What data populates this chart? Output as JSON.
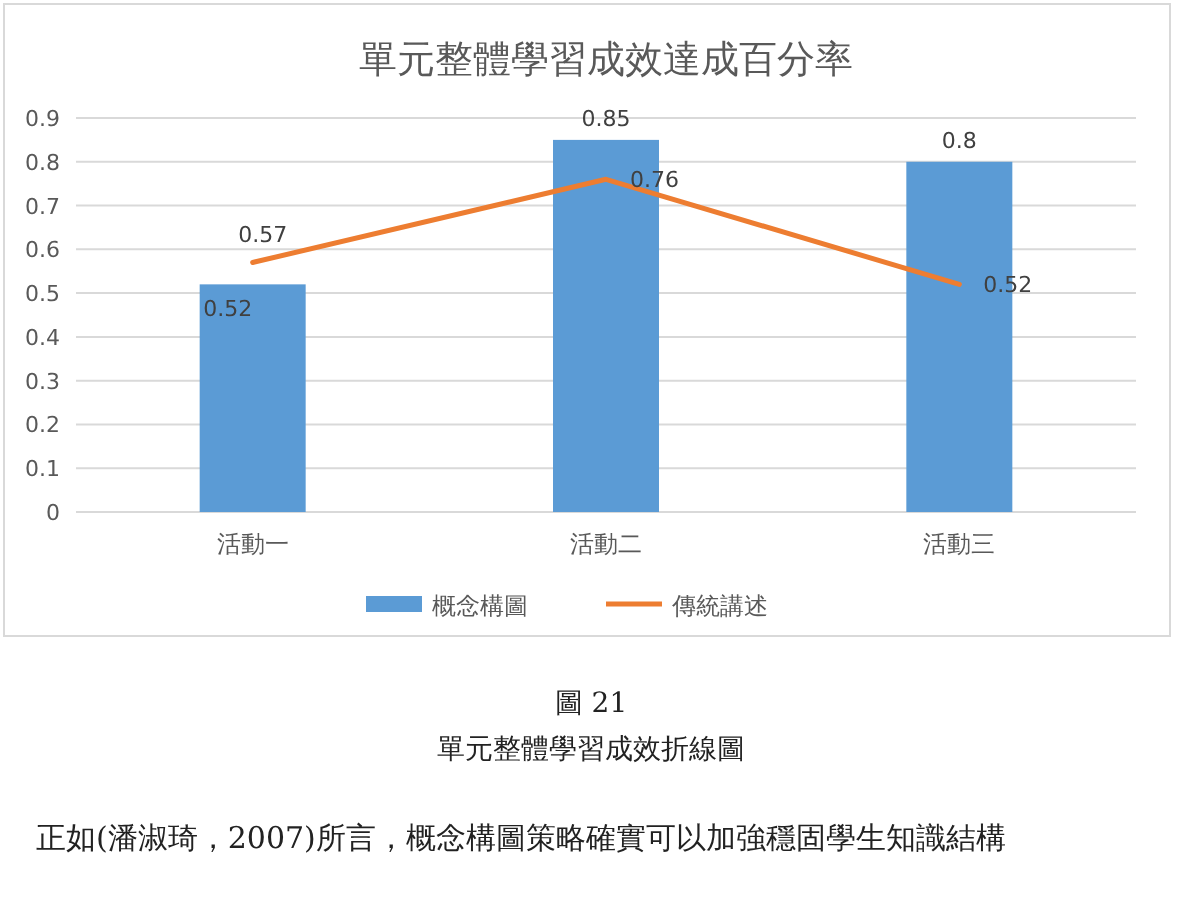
{
  "chart_data": {
    "type": "bar",
    "title": "單元整體學習成效達成百分率",
    "categories": [
      "活動一",
      "活動二",
      "活動三"
    ],
    "series": [
      {
        "name": "概念構圖",
        "color": "#5b9bd5",
        "values": [
          0.52,
          0.85,
          0.8
        ]
      },
      {
        "name": "傳統講述",
        "type": "line",
        "color": "#ed7d31",
        "values": [
          0.57,
          0.76,
          0.52
        ]
      }
    ],
    "ylim": [
      0,
      0.9
    ],
    "yticks": [
      0,
      0.1,
      0.2,
      0.3,
      0.4,
      0.5,
      0.6,
      0.7,
      0.8,
      0.9
    ],
    "grid": "y",
    "legend": "bottom",
    "data_labels": true,
    "marker": "none",
    "line_style": "solid",
    "annotations": [
      "圖 21",
      "單元整體學習成效折線圖",
      "正如(潘淑琦，2007)所言，概念構圖策略確實可以加強穩固學生知識結構"
    ]
  }
}
